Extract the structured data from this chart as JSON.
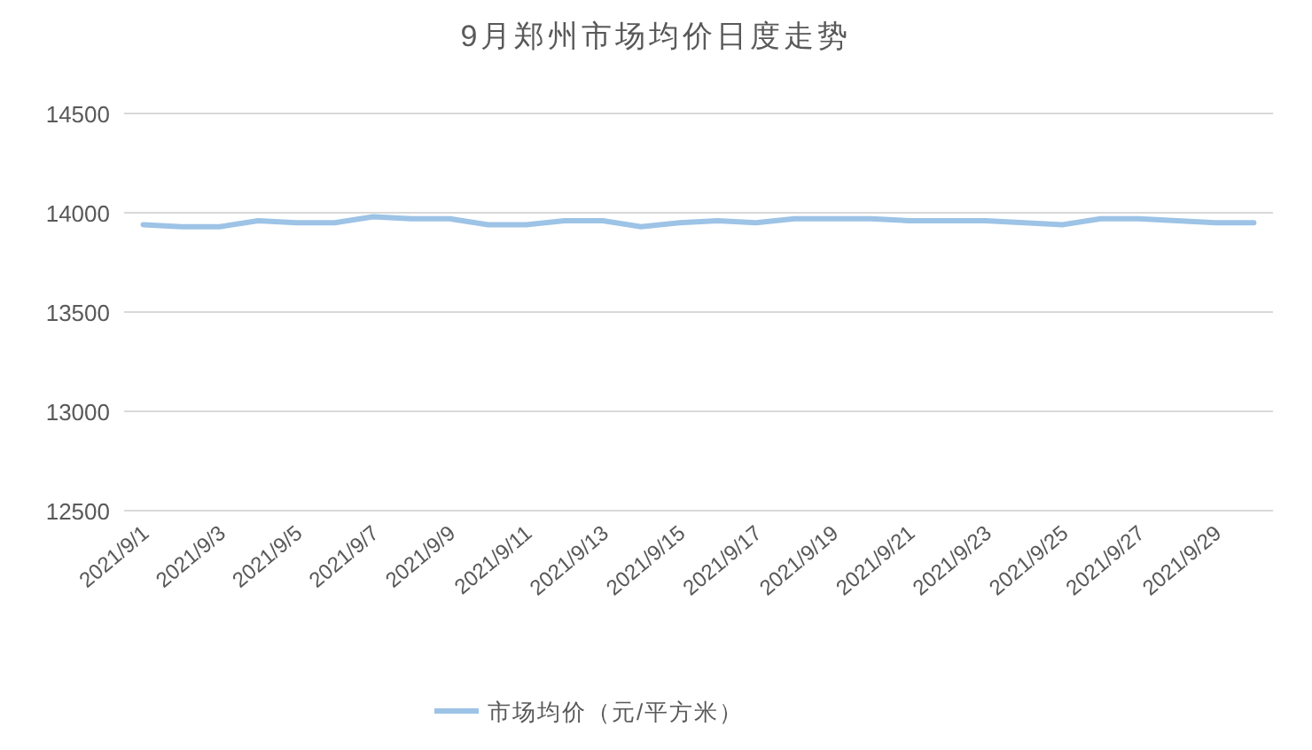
{
  "chart_data": {
    "type": "line",
    "title": "9月郑州市场均价日度走势",
    "categories": [
      "2021/9/1",
      null,
      "2021/9/3",
      null,
      "2021/9/5",
      null,
      "2021/9/7",
      null,
      "2021/9/9",
      null,
      "2021/9/11",
      null,
      "2021/9/13",
      null,
      "2021/9/15",
      null,
      "2021/9/17",
      null,
      "2021/9/19",
      null,
      "2021/9/21",
      null,
      "2021/9/23",
      null,
      "2021/9/25",
      null,
      "2021/9/27",
      null,
      "2021/9/29",
      null
    ],
    "series": [
      {
        "name": "市场均价（元/平方米）",
        "color": "#9dc3e6",
        "values": [
          13940,
          13930,
          13930,
          13960,
          13950,
          13950,
          13980,
          13970,
          13970,
          13940,
          13940,
          13960,
          13960,
          13930,
          13950,
          13960,
          13950,
          13970,
          13970,
          13970,
          13960,
          13960,
          13960,
          13950,
          13940,
          13970,
          13970,
          13960,
          13950,
          13950
        ]
      }
    ],
    "ylim": [
      12500,
      14500
    ],
    "yticks": [
      12500,
      13000,
      13500,
      14000,
      14500
    ],
    "grid": "y",
    "legend": "bottom",
    "marker": "none",
    "line_style": "solid"
  }
}
